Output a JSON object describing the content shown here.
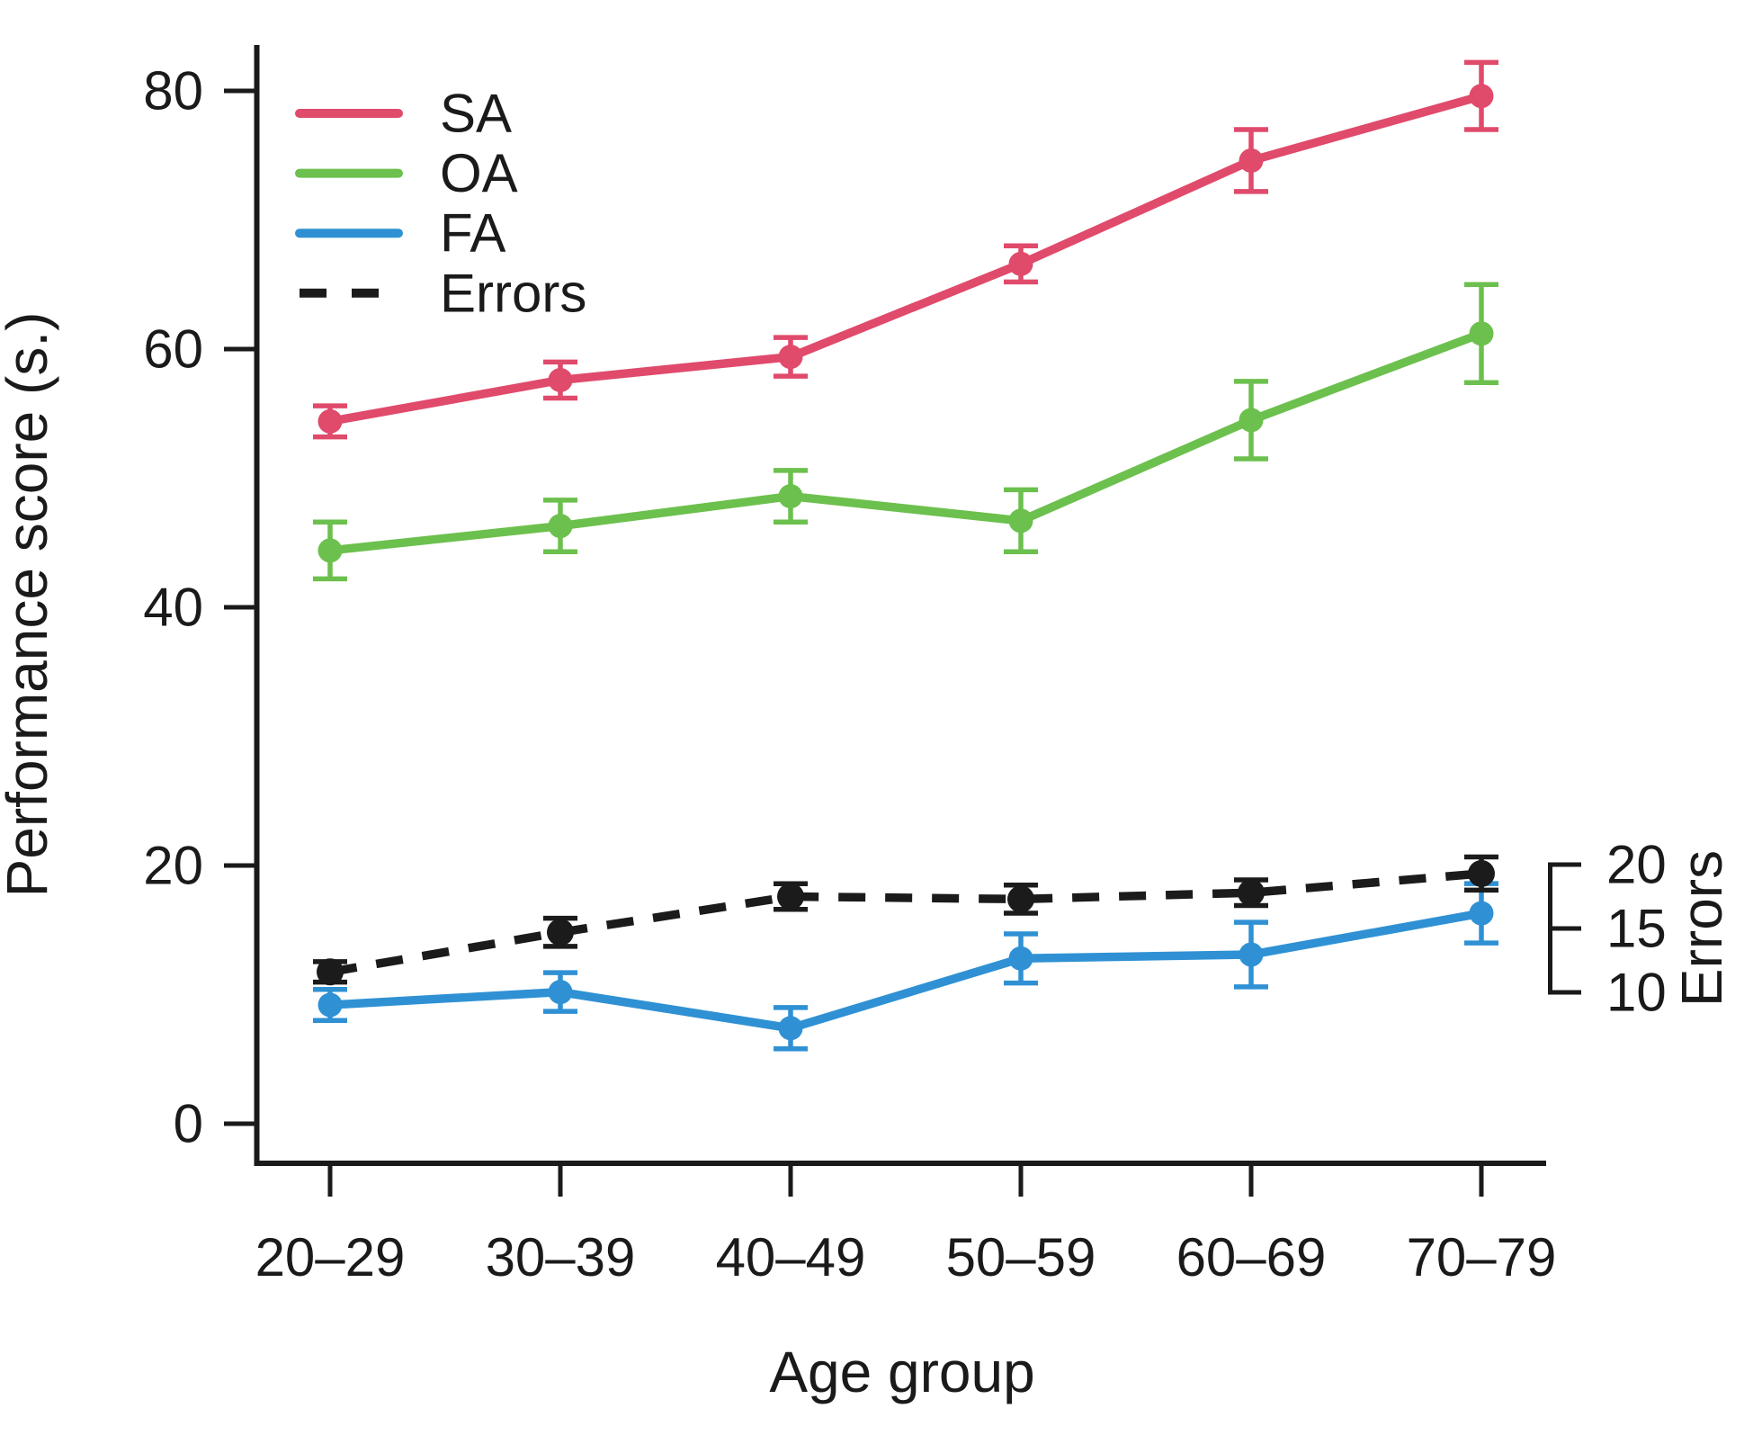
{
  "figure": {
    "background": "#ffffff",
    "text_color": "#1a1a1a"
  },
  "chart_data": {
    "type": "line",
    "title": "",
    "xlabel": "Age group",
    "ylabel": "Performance score (s.)",
    "ylabel_right": "Errors",
    "categories": [
      "20–29",
      "30–39",
      "40–49",
      "50–59",
      "60–69",
      "70–79"
    ],
    "y_axis_left": {
      "ticks": [
        0,
        20,
        40,
        60,
        80
      ],
      "range": [
        -3,
        84
      ]
    },
    "y_axis_right": {
      "ticks": [
        10,
        15,
        20
      ],
      "segment": [
        10,
        20
      ]
    },
    "grid": false,
    "legend_position": "top-left",
    "legend_entries": [
      "SA",
      "OA",
      "FA",
      "Errors"
    ],
    "series": [
      {
        "name": "SA",
        "color": "#e04a6b",
        "line_style": "solid",
        "axis": "left",
        "values": [
          54.4,
          57.6,
          59.4,
          66.6,
          74.6,
          79.6
        ],
        "errors": [
          1.2,
          1.4,
          1.5,
          1.4,
          2.4,
          2.6
        ]
      },
      {
        "name": "OA",
        "color": "#6cc04d",
        "line_style": "solid",
        "axis": "left",
        "values": [
          44.4,
          46.3,
          48.6,
          46.7,
          54.5,
          61.2
        ],
        "errors": [
          2.2,
          2.0,
          2.0,
          2.4,
          3.0,
          3.8
        ]
      },
      {
        "name": "FA",
        "color": "#2f91d4",
        "line_style": "solid",
        "axis": "left",
        "values": [
          9.2,
          10.2,
          7.4,
          12.8,
          13.1,
          16.3
        ],
        "errors": [
          1.2,
          1.5,
          1.6,
          1.9,
          2.5,
          2.3
        ]
      },
      {
        "name": "Errors",
        "color": "#1b1b1b",
        "line_style": "dashed",
        "axis": "right",
        "values": [
          11.6,
          14.7,
          17.5,
          17.3,
          17.8,
          19.3
        ],
        "errors": [
          0.8,
          1.1,
          1.0,
          1.1,
          1.0,
          1.3
        ]
      }
    ]
  }
}
